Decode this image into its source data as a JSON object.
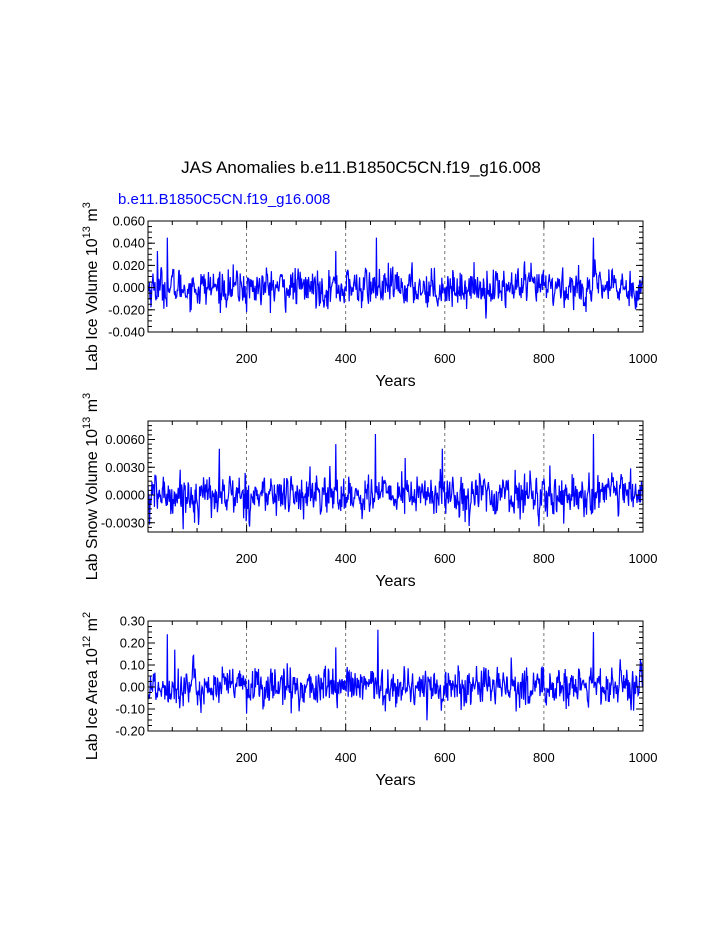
{
  "chart_data": {
    "type": "line",
    "title": "JAS Anomalies b.e11.B1850C5CN.f19_g16.008",
    "subtitle": "b.e11.B1850C5CN.f19_g16.008",
    "series_color": "#0000ff",
    "panels": [
      {
        "name": "ice-volume",
        "ylabel": "Lab Ice Volume 10",
        "ylabel_exp": "13",
        "ylabel_unit": " m",
        "ylabel_unit_exp": "3",
        "xlabel": "Years",
        "xlim": [
          1,
          1000
        ],
        "ylim": [
          -0.04,
          0.06
        ],
        "yticks": [
          -0.04,
          -0.02,
          0.0,
          0.02,
          0.04,
          0.06
        ],
        "ytick_labels": [
          "-0.040",
          "-0.020",
          "0.000",
          "0.020",
          "0.040",
          "0.060"
        ],
        "yminor": 0.005,
        "xticks": [
          200,
          400,
          600,
          800,
          1000
        ],
        "xtick_labels": [
          "200",
          "400",
          "600",
          "800",
          "1000"
        ],
        "grid_x": [
          200,
          400,
          600,
          800
        ],
        "series": {
          "name": "b.e11.B1850C5CN.f19_g16.008",
          "sigma": 0.0085,
          "bias": 0.0,
          "peaks": [
            [
              20,
              0.033
            ],
            [
              40,
              0.045
            ],
            [
              462,
              0.045
            ],
            [
              900,
              0.045
            ],
            [
              380,
              0.033
            ],
            [
              200,
              -0.022
            ],
            [
              885,
              -0.022
            ]
          ]
        }
      },
      {
        "name": "snow-volume",
        "ylabel": "Lab Snow Volume 10",
        "ylabel_exp": "13",
        "ylabel_unit": " m",
        "ylabel_unit_exp": "3",
        "xlabel": "Years",
        "xlim": [
          1,
          1000
        ],
        "ylim": [
          -0.004,
          0.008
        ],
        "yticks": [
          -0.003,
          0.0,
          0.003,
          0.006
        ],
        "ytick_labels": [
          "-0.0030",
          "0.0000",
          "0.0030",
          "0.0060"
        ],
        "yminor": 0.0005,
        "xticks": [
          200,
          400,
          600,
          800,
          1000
        ],
        "xtick_labels": [
          "200",
          "400",
          "600",
          "800",
          "1000"
        ],
        "grid_x": [
          200,
          400,
          600,
          800
        ],
        "series": {
          "name": "b.e11.B1850C5CN.f19_g16.008",
          "sigma": 0.0011,
          "bias": 0.0,
          "peaks": [
            [
              145,
              0.005
            ],
            [
              460,
              0.0066
            ],
            [
              900,
              0.0066
            ],
            [
              380,
              0.0055
            ],
            [
              595,
              0.005
            ],
            [
              520,
              0.004
            ],
            [
              95,
              -0.003
            ],
            [
              4,
              -0.0032
            ],
            [
              200,
              -0.002
            ]
          ]
        }
      },
      {
        "name": "ice-area",
        "ylabel": "Lab Ice Area 10",
        "ylabel_exp": "12",
        "ylabel_unit": " m",
        "ylabel_unit_exp": "2",
        "xlabel": "Years",
        "xlim": [
          1,
          1000
        ],
        "ylim": [
          -0.2,
          0.3
        ],
        "yticks": [
          -0.2,
          -0.1,
          0.0,
          0.1,
          0.2,
          0.3
        ],
        "ytick_labels": [
          "-0.20",
          "-0.10",
          "0.00",
          "0.10",
          "0.20",
          "0.30"
        ],
        "yminor": 0.025,
        "xticks": [
          200,
          400,
          600,
          800,
          1000
        ],
        "xtick_labels": [
          "200",
          "400",
          "600",
          "800",
          "1000"
        ],
        "grid_x": [
          200,
          400,
          600,
          800
        ],
        "series": {
          "name": "b.e11.B1850C5CN.f19_g16.008",
          "sigma": 0.045,
          "bias": 0.0,
          "peaks": [
            [
              40,
              0.24
            ],
            [
              465,
              0.26
            ],
            [
              900,
              0.25
            ],
            [
              380,
              0.18
            ],
            [
              55,
              0.17
            ],
            [
              200,
              -0.12
            ],
            [
              290,
              -0.12
            ]
          ]
        }
      }
    ]
  }
}
